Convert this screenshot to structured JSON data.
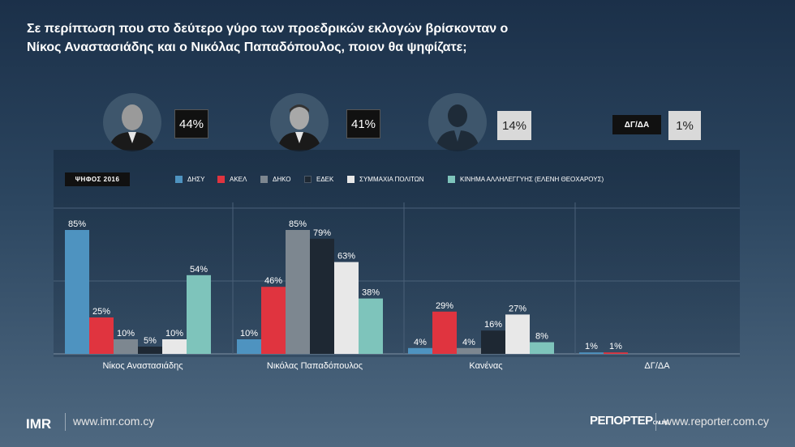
{
  "title": {
    "line1": "Σε περίπτωση που στο δεύτερο γύρο των προεδρικών εκλογών βρίσκονταν ο",
    "line2": "Νίκος Αναστασιάδης και ο Νικόλας Παπαδόπουλος, ποιον θα ψηφίζατε;"
  },
  "headline": {
    "anastasiades_pct": "44%",
    "papadopoulos_pct": "41%",
    "none_pct": "14%",
    "dgda_label": "ΔΓ/ΔΑ",
    "dgda_pct": "1%"
  },
  "year_tag": "ΨΗΦΟΣ 2016",
  "colors": {
    "ΔΗΣΥ": "#4e93c0",
    "ΑΚΕΛ": "#e0343f",
    "ΔΗΚΟ": "#7d8790",
    "ΕΔΕΚ": "#1e2833",
    "ΣΥΜΜΑΧΙΑ ΠΟΛΙΤΩΝ": "#e8e8e8",
    "ΚΙΝΗΜΑ ΑΛΛΗΛΕΓΓΥΗΣ": "#7ec4bb"
  },
  "chart_data": {
    "type": "bar",
    "categories": [
      "Νίκος Αναστασιάδης",
      "Νικόλας Παπαδόπουλος",
      "Κανένας",
      "ΔΓ/ΔΑ"
    ],
    "series": [
      {
        "name": "ΔΗΣΥ",
        "values": [
          85,
          10,
          4,
          1
        ],
        "labels": [
          "85%",
          "10%",
          "4%",
          "1%"
        ]
      },
      {
        "name": "ΑΚΕΛ",
        "values": [
          25,
          46,
          29,
          1
        ],
        "labels": [
          "25%",
          "46%",
          "29%",
          "1%"
        ]
      },
      {
        "name": "ΔΗΚΟ",
        "values": [
          10,
          85,
          4,
          null
        ],
        "labels": [
          "10%",
          "85%",
          "4%",
          ""
        ]
      },
      {
        "name": "ΕΔΕΚ",
        "values": [
          5,
          79,
          16,
          null
        ],
        "labels": [
          "5%",
          "79%",
          "16%",
          ""
        ]
      },
      {
        "name": "ΣΥΜΜΑΧΙΑ ΠΟΛΙΤΩΝ",
        "values": [
          10,
          63,
          27,
          null
        ],
        "labels": [
          "10%",
          "63%",
          "27%",
          ""
        ]
      },
      {
        "name": "ΚΙΝΗΜΑ ΑΛΛΗΛΕΓΓΥΗΣ (ΕΛΕΝΗ ΘΕΟΧΑΡΟΥΣ)",
        "values": [
          54,
          38,
          8,
          null
        ],
        "labels": [
          "54%",
          "38%",
          "8%",
          ""
        ]
      }
    ],
    "ylim": [
      0,
      100
    ],
    "grid": true,
    "legend_position": "top"
  },
  "footer": {
    "imr_logo_text": "IMR",
    "imr_url": "www.imr.com.cy",
    "reporter_logo": "ΡΕΠΟΡΤΕΡ",
    "reporter_logo_suffix": "ONLINE",
    "reporter_url": "www.reporter.com.cy"
  }
}
